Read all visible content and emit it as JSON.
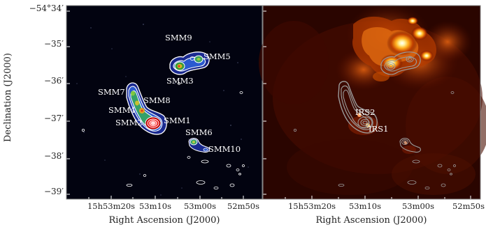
{
  "ylabel": "Declination (J2000)",
  "yticks": [
    "−54°34′",
    "−35′",
    "−36′",
    "−37′",
    "−38′",
    "−39′"
  ],
  "left_panel": {
    "xlabel": "Right Ascension (J2000)",
    "xticks": [
      "15h53m20s",
      "53m10s",
      "53m00s",
      "52m50s"
    ],
    "sources": [
      "SMM9",
      "SMM5",
      "SMM3",
      "SMM7",
      "SMM8",
      "SMM4",
      "SMM2",
      "SMM1",
      "SMM6",
      "SMM10"
    ]
  },
  "right_panel": {
    "xlabel": "Right Ascension (J2000)",
    "xticks": [
      "15h53m20s",
      "53m10s",
      "53m00s",
      "52m50s"
    ],
    "sources": [
      "IRS2",
      "IRS1"
    ]
  },
  "colors": {
    "left_background": "#020310",
    "right_background": "#2a0500",
    "contour_left": "#ffffff",
    "contour_right": "#9a9a9a"
  }
}
